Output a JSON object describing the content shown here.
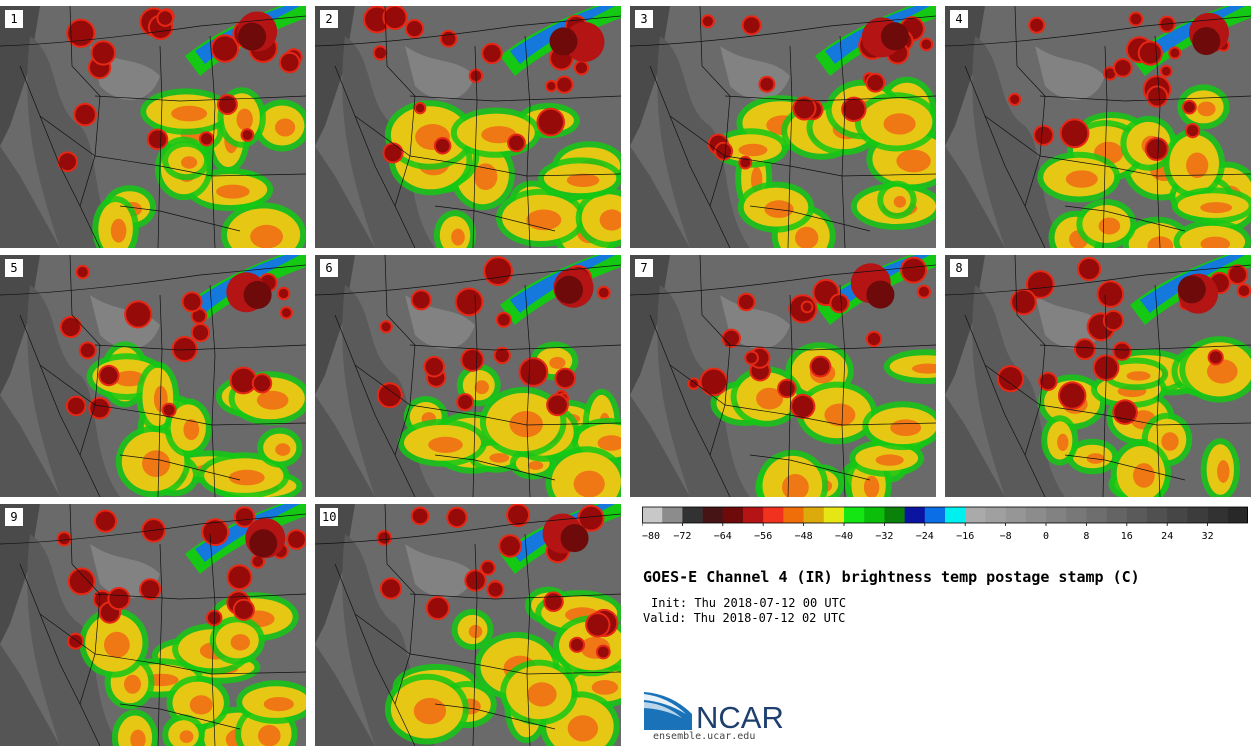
{
  "title": "GOES-E Channel 4 (IR) brightness temp postage stamp (C)",
  "init": "Init: Thu 2018-07-12 00 UTC",
  "valid": "Valid: Thu 2018-07-12 02 UTC",
  "logo": {
    "text": "NCAR",
    "url": "ensemble.ucar.edu"
  },
  "panels": [
    "1",
    "2",
    "3",
    "4",
    "5",
    "6",
    "7",
    "8",
    "9",
    "10"
  ],
  "colorbar": {
    "colors": [
      "#c8c8c8",
      "#8c8c8c",
      "#323232",
      "#461414",
      "#6e0a0a",
      "#b41414",
      "#f0321e",
      "#f06e0a",
      "#dcaa0a",
      "#e6e614",
      "#14e614",
      "#0abe0a",
      "#0a820a",
      "#0a14a0",
      "#0a6ee6",
      "#00f0f0",
      "#aaaaaa",
      "#a0a0a0",
      "#969696",
      "#8c8c8c",
      "#828282",
      "#787878",
      "#6e6e6e",
      "#646464",
      "#5a5a5a",
      "#505050",
      "#464646",
      "#3c3c3c",
      "#323232",
      "#282828"
    ],
    "tick_labels": [
      "−80",
      "−72",
      "−64",
      "−56",
      "−48",
      "−40",
      "−32",
      "−24",
      "−16",
      "−8",
      "0",
      "8",
      "16",
      "24",
      "32"
    ]
  }
}
